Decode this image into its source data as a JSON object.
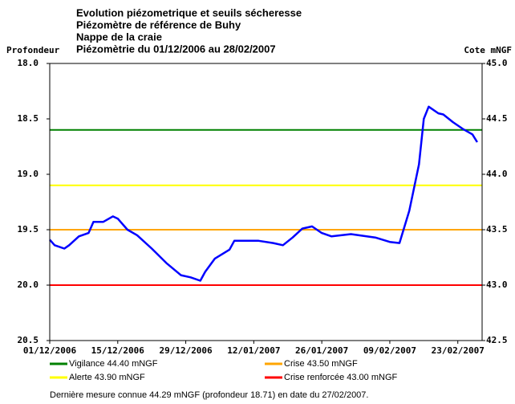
{
  "chart_data": {
    "type": "line",
    "title": [
      "Evolution piézometrique et seuils sécheresse",
      "Piézomètre de référence de Buhy",
      "Nappe de la craie",
      "Piézomètrie du 01/12/2006 au 28/02/2007"
    ],
    "ylabel": "Profondeur",
    "y2label": "Cote mNGF",
    "x": [
      "01/12/2006",
      "02/12/2006",
      "04/12/2006",
      "05/12/2006",
      "07/12/2006",
      "09/12/2006",
      "10/12/2006",
      "12/12/2006",
      "14/12/2006",
      "15/12/2006",
      "17/12/2006",
      "19/12/2006",
      "22/12/2006",
      "25/12/2006",
      "28/12/2006",
      "30/12/2006",
      "01/01/2007",
      "02/01/2007",
      "04/01/2007",
      "07/01/2007",
      "08/01/2007",
      "13/01/2007",
      "16/01/2007",
      "18/01/2007",
      "20/01/2007",
      "22/01/2007",
      "24/01/2007",
      "26/01/2007",
      "28/01/2007",
      "01/02/2007",
      "06/02/2007",
      "09/02/2007",
      "11/02/2007",
      "13/02/2007",
      "15/02/2007",
      "16/02/2007",
      "17/02/2007",
      "19/02/2007",
      "20/02/2007",
      "22/02/2007",
      "24/02/2007",
      "26/02/2007",
      "27/02/2007"
    ],
    "series": [
      {
        "color": "#0000ff",
        "axis": "y2",
        "values": [
          43.41,
          43.36,
          43.33,
          43.36,
          43.44,
          43.47,
          43.57,
          43.57,
          43.62,
          43.6,
          43.5,
          43.45,
          43.33,
          43.2,
          43.09,
          43.07,
          43.04,
          43.12,
          43.24,
          43.32,
          43.4,
          43.4,
          43.38,
          43.36,
          43.43,
          43.51,
          43.53,
          43.47,
          43.44,
          43.46,
          43.43,
          43.39,
          43.38,
          43.67,
          44.09,
          44.5,
          44.61,
          44.55,
          44.54,
          44.47,
          44.41,
          44.36,
          44.29
        ]
      }
    ],
    "thresholds": [
      {
        "name": "Vigilance 44.40 mNGF",
        "color": "#008000",
        "value": 44.4
      },
      {
        "name": "Crise 43.50 mNGF",
        "color": "#ffa500",
        "value": 43.5
      },
      {
        "name": "Alerte 43.90 mNGF",
        "color": "#ffff00",
        "value": 43.9
      },
      {
        "name": "Crise renforcée 43.00 mNGF",
        "color": "#ff0000",
        "value": 43.0
      }
    ],
    "xlim": [
      "01/12/2006",
      "28/02/2007"
    ],
    "xticks": [
      "01/12/2006",
      "15/12/2006",
      "29/12/2006",
      "12/01/2007",
      "26/01/2007",
      "09/02/2007",
      "23/02/2007"
    ],
    "ylim": [
      20.5,
      18.0
    ],
    "yticks": [
      {
        "value": 18,
        "label": "18.0"
      },
      18.5,
      {
        "value": 19,
        "label": "19.0"
      },
      19.5,
      {
        "value": 20,
        "label": "20.0"
      },
      20.5
    ],
    "y2lim": [
      42.5,
      45.0
    ],
    "y2ticks": [
      {
        "value": 45,
        "label": "45.0"
      },
      44.5,
      {
        "value": 44,
        "label": "44.0"
      },
      43.5,
      {
        "value": 43,
        "label": "43.0"
      },
      42.5
    ],
    "note": "Dernière mesure connue 44.29 mNGF (profondeur  18.71) en date du 27/02/2007."
  }
}
